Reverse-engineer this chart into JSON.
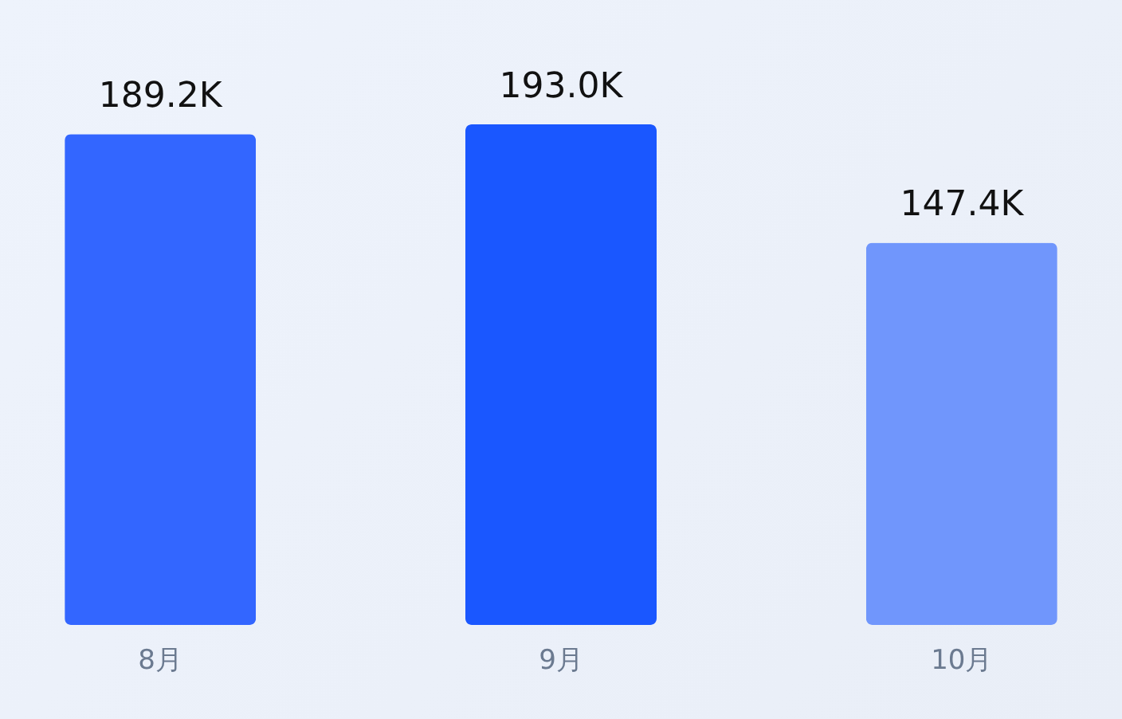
{
  "chart_data": {
    "type": "bar",
    "categories": [
      "8月",
      "9月",
      "10月"
    ],
    "values": [
      189.2,
      193.0,
      147.4
    ],
    "colors": [
      "#3366ff",
      "#1a57ff",
      "#7096fc"
    ],
    "value_labels": [
      "189.2K",
      "193.0K",
      "147.4K"
    ]
  }
}
